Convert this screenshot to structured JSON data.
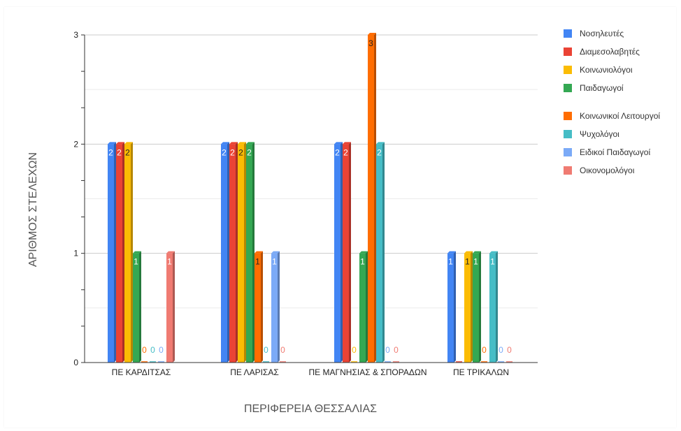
{
  "chart_data": {
    "type": "bar",
    "title": "",
    "xlabel": "ΠΕΡΙΦΕΡΕΙΑ ΘΕΣΣΑΛΙΑΣ",
    "ylabel": "ΑΡΙΘΜΟΣ ΣΤΕΛΕΧΩΝ",
    "ylim": [
      0,
      3
    ],
    "yticks": [
      "0",
      "1",
      "2",
      "3"
    ],
    "grid": true,
    "legend_position": "right",
    "categories": [
      "ΠΕ ΚΑΡΔΙΤΣΑΣ",
      "ΠΕ ΛΑΡΙΣΑΣ",
      "ΠΕ ΜΑΓΝΗΣΙΑΣ & ΣΠΟΡΑΔΩΝ",
      "ΠΕ ΤΡΙΚΑΛΩΝ"
    ],
    "series": [
      {
        "name": "Νοσηλευτές",
        "color": "#4285f4",
        "values": [
          2,
          2,
          2,
          1
        ],
        "labels": [
          "2",
          "2",
          "2",
          "1"
        ]
      },
      {
        "name": "Διαμεσολαβητές",
        "color": "#ea4335",
        "values": [
          2,
          2,
          2,
          0
        ],
        "labels": [
          "2",
          "2",
          "2",
          ""
        ]
      },
      {
        "name": "Κοινωνιολόγοι",
        "color": "#fbbc04",
        "values": [
          2,
          2,
          0,
          1
        ],
        "labels": [
          "2",
          "2",
          "0",
          "1"
        ]
      },
      {
        "name": "Παιδαγωγοί",
        "color": "#34a853",
        "values": [
          1,
          2,
          1,
          1
        ],
        "labels": [
          "1",
          "2",
          "1",
          "1"
        ]
      },
      {
        "name": "Κοινωνικοί Λειτουργοί",
        "color": "#ff6d01",
        "values": [
          0,
          1,
          3,
          0
        ],
        "labels": [
          "0",
          "1",
          "3",
          "0"
        ]
      },
      {
        "name": "Ψυχολόγοι",
        "color": "#46bdc6",
        "values": [
          0,
          0,
          2,
          1
        ],
        "labels": [
          "0",
          "0",
          "2",
          "1"
        ]
      },
      {
        "name": "Ειδικοί Παιδαγωγοί",
        "color": "#7baaf7",
        "values": [
          0,
          1,
          0,
          0
        ],
        "labels": [
          "0",
          "1",
          "0",
          "0"
        ]
      },
      {
        "name": "Οικονομολόγοι",
        "color": "#f07b72",
        "values": [
          1,
          0,
          0,
          0
        ],
        "labels": [
          "1",
          "0",
          "0",
          "0"
        ]
      }
    ]
  }
}
